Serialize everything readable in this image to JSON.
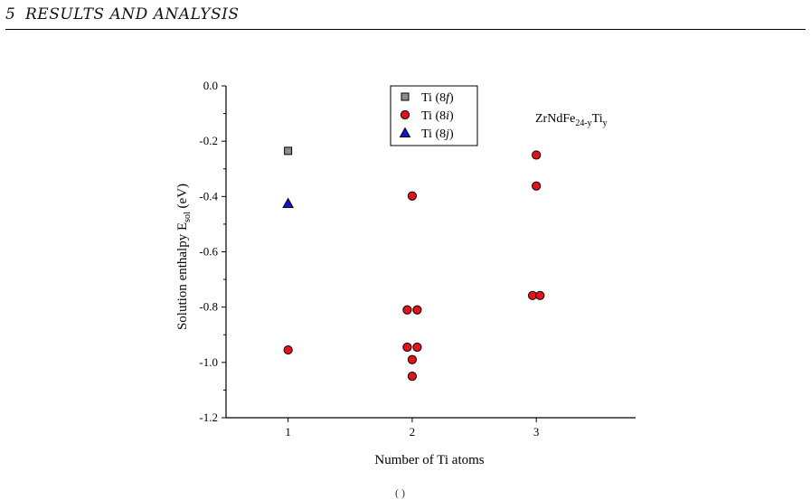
{
  "header": {
    "section_number": "5",
    "section_title": "RESULTS AND ANALYSIS"
  },
  "footer_fragment": "( )",
  "chart_data": {
    "type": "scatter",
    "title": "",
    "annotation": {
      "base": "ZrNdFe",
      "sub1": "24-y",
      "mid": "Ti",
      "sub2": "y"
    },
    "xlabel": "Number of Ti atoms",
    "ylabel": {
      "main": "Solution enthalpy E",
      "sub": "sol",
      "unit": " (eV)"
    },
    "xlim": [
      0.5,
      3.8
    ],
    "ylim": [
      -1.2,
      0.0
    ],
    "xticks": [
      1,
      2,
      3
    ],
    "xtick_labels": [
      "1",
      "2",
      "3"
    ],
    "yticks": [
      0.0,
      -0.2,
      -0.4,
      -0.6,
      -0.8,
      -1.0,
      -1.2
    ],
    "ytick_labels": [
      "0.0",
      "-0.2",
      "-0.4",
      "-0.6",
      "-0.8",
      "-1.0",
      "-1.2"
    ],
    "legend_position": "top-center",
    "series": [
      {
        "name": "Ti (8f)",
        "label_main": "Ti (8",
        "label_site": "f",
        "label_end": ")",
        "marker": "square",
        "color": "#8c8c8c",
        "points": [
          {
            "x": 1,
            "y": -0.235
          }
        ]
      },
      {
        "name": "Ti (8i)",
        "label_main": "Ti (8",
        "label_site": "i",
        "label_end": ")",
        "marker": "circle",
        "color": "#e8101a",
        "points": [
          {
            "x": 1,
            "y": -0.955
          },
          {
            "x": 1.96,
            "y": -0.81
          },
          {
            "x": 2.04,
            "y": -0.81
          },
          {
            "x": 1.96,
            "y": -0.945
          },
          {
            "x": 2.04,
            "y": -0.945
          },
          {
            "x": 2,
            "y": -0.99
          },
          {
            "x": 2,
            "y": -1.05
          },
          {
            "x": 2,
            "y": -0.398
          },
          {
            "x": 3,
            "y": -0.25
          },
          {
            "x": 3,
            "y": -0.362
          },
          {
            "x": 2.97,
            "y": -0.758
          },
          {
            "x": 3.03,
            "y": -0.758
          }
        ]
      },
      {
        "name": "Ti (8j)",
        "label_main": "Ti (8",
        "label_site": "j",
        "label_end": ")",
        "marker": "triangle",
        "color": "#1414d2",
        "points": [
          {
            "x": 1,
            "y": -0.425
          }
        ]
      }
    ]
  }
}
